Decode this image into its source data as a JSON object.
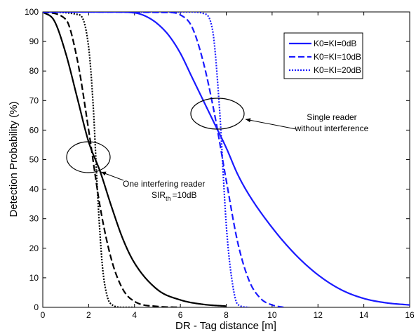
{
  "chart_data": {
    "type": "line",
    "title": "",
    "xlabel": "DR - Tag distance [m]",
    "ylabel": "Detection Probability (%)",
    "xlim": [
      0,
      16
    ],
    "ylim": [
      0,
      100
    ],
    "xticks": [
      0,
      2,
      4,
      6,
      8,
      10,
      12,
      14,
      16
    ],
    "yticks": [
      0,
      10,
      20,
      30,
      40,
      50,
      60,
      70,
      80,
      90,
      100
    ],
    "grid": false,
    "legend_position": "top-right",
    "legend": [
      {
        "label": "K0=KI=0dB",
        "style": "solid"
      },
      {
        "label": "K0=KI=10dB",
        "style": "dashed"
      },
      {
        "label": "K0=KI=20dB",
        "style": "dotted"
      }
    ],
    "series": [
      {
        "group": "one-interfering-reader",
        "legend": "K0=KI=0dB",
        "color": "#000000",
        "style": "solid",
        "x": [
          0,
          0.5,
          1.0,
          1.5,
          2.0,
          2.5,
          3.0,
          3.5,
          4.0,
          5.0,
          6.0,
          7.0,
          8.0
        ],
        "y": [
          100,
          97,
          86,
          71,
          56,
          46,
          34,
          23,
          15,
          6,
          2.5,
          1,
          0.4
        ]
      },
      {
        "group": "one-interfering-reader",
        "legend": "K0=KI=10dB",
        "color": "#000000",
        "style": "dashed",
        "x": [
          0,
          1.0,
          1.5,
          2.0,
          2.5,
          3.0,
          3.5,
          4.0,
          5.0,
          6.0
        ],
        "y": [
          100,
          97.5,
          84,
          60,
          34,
          16,
          6,
          2,
          0.3,
          0
        ]
      },
      {
        "group": "one-interfering-reader",
        "legend": "K0=KI=20dB",
        "color": "#000000",
        "style": "dotted",
        "x": [
          0,
          1.6,
          2.0,
          2.2,
          2.4,
          2.6,
          2.8,
          3.0,
          3.5,
          4.0
        ],
        "y": [
          100,
          99,
          88,
          68,
          37,
          14,
          4,
          1,
          0,
          0
        ]
      },
      {
        "group": "single-reader",
        "legend": "K0=KI=0dB",
        "color": "#1a1aff",
        "style": "solid",
        "x": [
          0,
          3.0,
          4.0,
          4.5,
          5.0,
          5.5,
          6.0,
          6.5,
          7.0,
          7.5,
          8.0,
          8.5,
          9.0,
          10.0,
          11.0,
          12.0,
          13.0,
          14.0,
          15.0,
          16.0
        ],
        "y": [
          100,
          100,
          99.7,
          98.5,
          96,
          92,
          86,
          78,
          70,
          62,
          54,
          45,
          38,
          27,
          18,
          11,
          6,
          3,
          1.5,
          0.8
        ]
      },
      {
        "group": "single-reader",
        "legend": "K0=KI=10dB",
        "color": "#1a1aff",
        "style": "dashed",
        "x": [
          0,
          5.5,
          6.0,
          6.5,
          7.0,
          7.5,
          8.0,
          8.5,
          9.0,
          9.5,
          10.0,
          10.5
        ],
        "y": [
          100,
          99.8,
          99,
          95,
          83,
          65,
          43,
          22,
          9,
          3,
          0.8,
          0
        ]
      },
      {
        "group": "single-reader",
        "legend": "K0=KI=20dB",
        "color": "#1a1aff",
        "style": "dotted",
        "x": [
          0,
          6.5,
          7.0,
          7.4,
          7.7,
          8.0,
          8.2,
          8.5,
          9.0
        ],
        "y": [
          100,
          100,
          99.5,
          94,
          68,
          28,
          12,
          1,
          0
        ]
      }
    ],
    "annotations": {
      "single_reader": {
        "line1": "Single reader",
        "line2": "without interference",
        "ellipse_center": [
          7.75,
          63.5
        ],
        "arrow_to": [
          8.8,
          66.5
        ]
      },
      "interfering_reader": {
        "line1": "One interfering reader",
        "sir_main": "SIR",
        "sir_sub": "th",
        "sir_tail": "=10dB",
        "ellipse_center": [
          2.2,
          50.5
        ],
        "arrow_to": [
          2.5,
          46.5
        ]
      }
    }
  }
}
